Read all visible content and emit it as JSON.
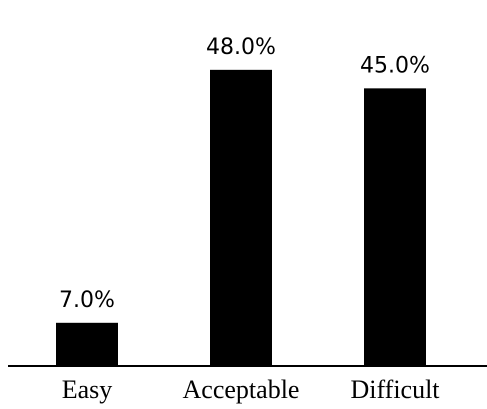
{
  "chart_data": {
    "type": "bar",
    "categories": [
      "Easy",
      "Acceptable",
      "Difficult"
    ],
    "values": [
      7.0,
      48.0,
      45.0
    ],
    "data_labels": [
      "7.0%",
      "48.0%",
      "45.0%"
    ],
    "title": "",
    "xlabel": "",
    "ylabel": "",
    "ylim": [
      0,
      50
    ],
    "grid": false,
    "legend": "none",
    "bar_color": "#000000"
  }
}
